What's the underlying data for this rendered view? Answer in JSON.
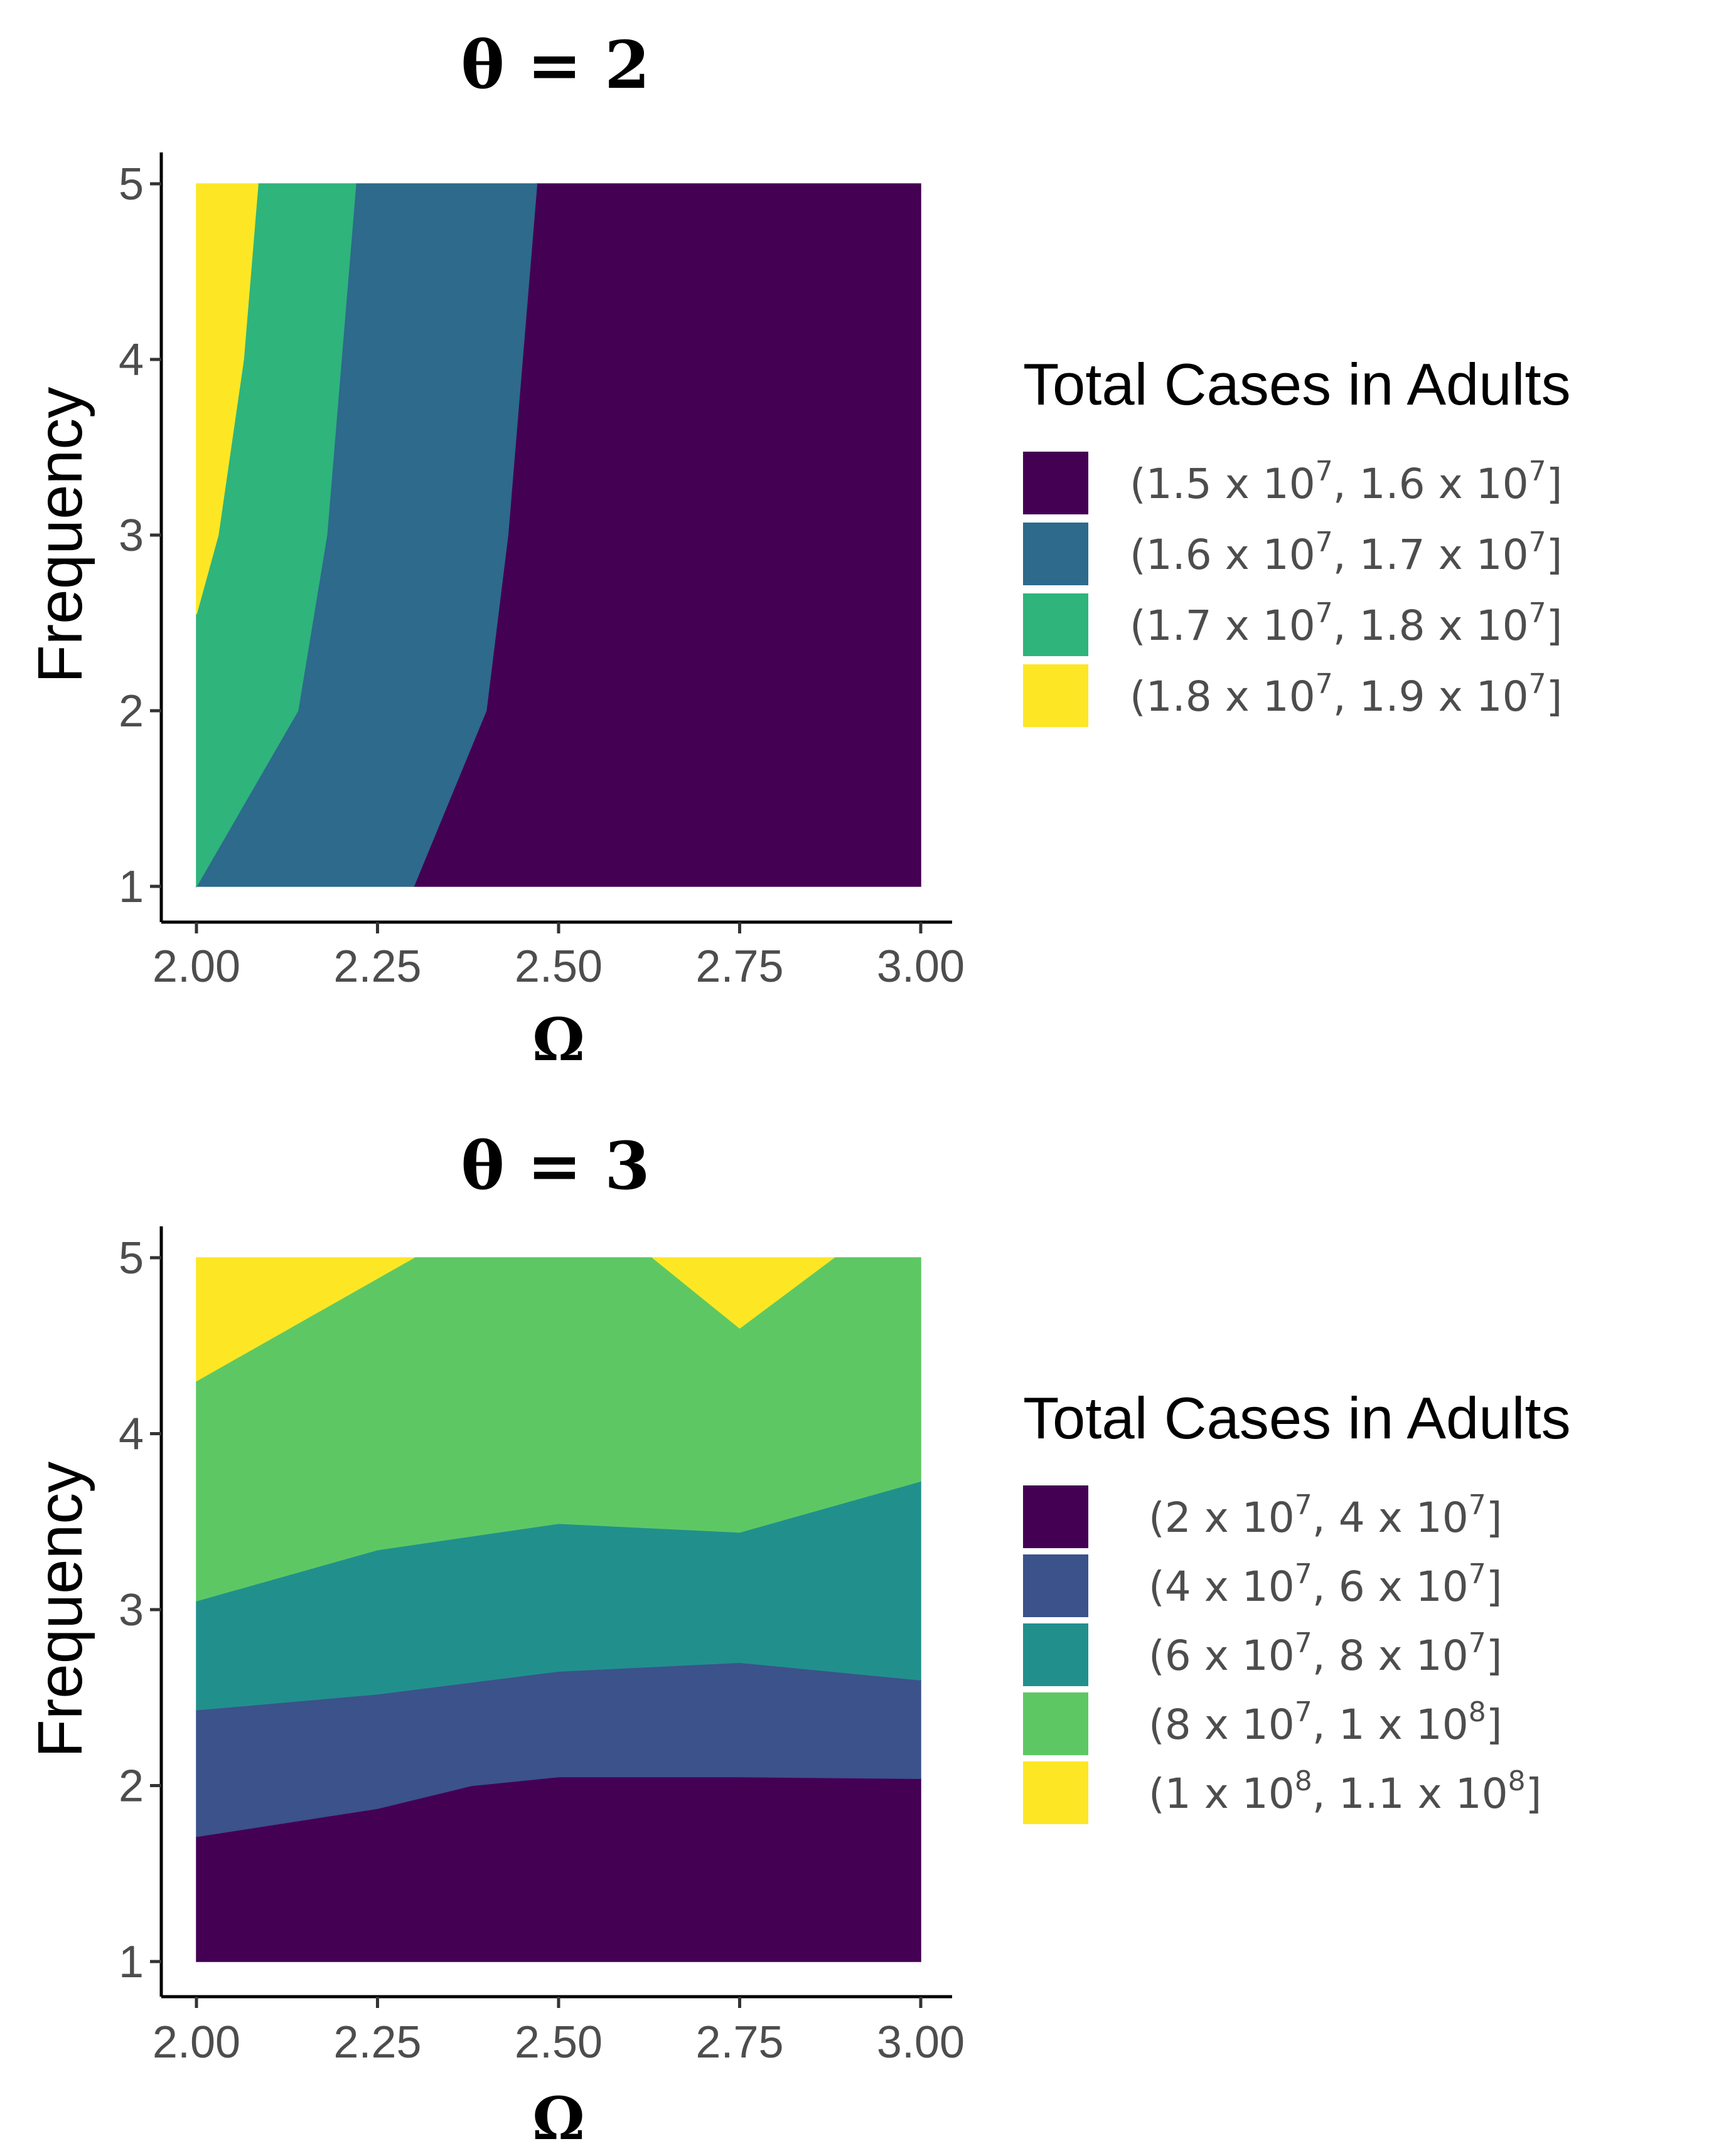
{
  "chart_data": [
    {
      "type": "contour",
      "title": "θ = 2",
      "xlabel": "Ω",
      "ylabel": "Frequency",
      "xlim": [
        2.0,
        3.0
      ],
      "ylim": [
        1,
        5
      ],
      "xticks": [
        "2.00",
        "2.25",
        "2.50",
        "2.75",
        "3.00"
      ],
      "xtick_values": [
        2.0,
        2.25,
        2.5,
        2.75,
        3.0
      ],
      "yticks": [
        "1",
        "2",
        "3",
        "4",
        "5"
      ],
      "ytick_values": [
        1,
        2,
        3,
        4,
        5
      ],
      "legend_title": "Total Cases in Adults",
      "legend": [
        {
          "label": "(1.5 x 10^7, 1.6 x 10^7]",
          "parts": [
            "(1.5 x 10",
            "7",
            ", 1.6 x 10",
            "7",
            "]"
          ],
          "color": "#440154"
        },
        {
          "label": "(1.6 x 10^7, 1.7 x 10^7]",
          "parts": [
            "(1.6 x 10",
            "7",
            ", 1.7 x 10",
            "7",
            "]"
          ],
          "color": "#2d6a8c"
        },
        {
          "label": "(1.7 x 10^7, 1.8 x 10^7]",
          "parts": [
            "(1.7 x 10",
            "7",
            ", 1.8 x 10",
            "7",
            "]"
          ],
          "color": "#2fb47c"
        },
        {
          "label": "(1.8 x 10^7, 1.9 x 10^7]",
          "parts": [
            "(1.8 x 10",
            "7",
            ", 1.9 x 10",
            "7",
            "]"
          ],
          "color": "#fde725"
        }
      ],
      "regions": [
        {
          "name": "band-1.5-1.6",
          "color": "#440154",
          "points": [
            [
              2.3,
              1
            ],
            [
              3.0,
              1
            ],
            [
              3.0,
              5
            ],
            [
              2.47,
              5
            ],
            [
              2.45,
              4
            ],
            [
              2.43,
              3
            ],
            [
              2.4,
              2
            ]
          ]
        },
        {
          "name": "band-1.6-1.7",
          "color": "#2d6a8c",
          "points": [
            [
              2.0,
              1
            ],
            [
              2.3,
              1
            ],
            [
              2.4,
              2
            ],
            [
              2.43,
              3
            ],
            [
              2.45,
              4
            ],
            [
              2.47,
              5
            ],
            [
              2.22,
              5
            ],
            [
              2.2,
              4
            ],
            [
              2.18,
              3
            ],
            [
              2.14,
              2
            ]
          ]
        },
        {
          "name": "band-1.7-1.8",
          "color": "#2fb47c",
          "points": [
            [
              2.0,
              1
            ],
            [
              2.14,
              2
            ],
            [
              2.18,
              3
            ],
            [
              2.2,
              4
            ],
            [
              2.22,
              5
            ],
            [
              2.085,
              5
            ],
            [
              2.065,
              4
            ],
            [
              2.03,
              3
            ],
            [
              2.0,
              2.55
            ]
          ]
        },
        {
          "name": "band-1.8-1.9",
          "color": "#fde725",
          "points": [
            [
              2.0,
              2.55
            ],
            [
              2.03,
              3
            ],
            [
              2.065,
              4
            ],
            [
              2.085,
              5
            ],
            [
              2.0,
              5
            ]
          ]
        }
      ]
    },
    {
      "type": "contour",
      "title": "θ = 3",
      "xlabel": "Ω",
      "ylabel": "Frequency",
      "xlim": [
        2.0,
        3.0
      ],
      "ylim": [
        1,
        5
      ],
      "xticks": [
        "2.00",
        "2.25",
        "2.50",
        "2.75",
        "3.00"
      ],
      "xtick_values": [
        2.0,
        2.25,
        2.5,
        2.75,
        3.0
      ],
      "yticks": [
        "1",
        "2",
        "3",
        "4",
        "5"
      ],
      "ytick_values": [
        1,
        2,
        3,
        4,
        5
      ],
      "legend_title": "Total Cases in Adults",
      "legend": [
        {
          "label": "(2 x 10^7, 4 x 10^7]",
          "parts": [
            "(2 x 10",
            "7",
            ", 4 x 10",
            "7",
            "]"
          ],
          "color": "#440154"
        },
        {
          "label": "(4 x 10^7, 6 x 10^7]",
          "parts": [
            "(4 x 10",
            "7",
            ", 6 x 10",
            "7",
            "]"
          ],
          "color": "#3b528b"
        },
        {
          "label": "(6 x 10^7, 8 x 10^7]",
          "parts": [
            "(6 x 10",
            "7",
            ", 8 x 10",
            "7",
            "]"
          ],
          "color": "#21908c"
        },
        {
          "label": "(8 x 10^7, 1 x 10^8]",
          "parts": [
            "(8 x 10",
            "7",
            ", 1 x 10",
            "8",
            "]"
          ],
          "color": "#5dc863"
        },
        {
          "label": "(1 x 10^8, 1.1 x 10^8]",
          "parts": [
            "(1 x 10",
            "8",
            ", 1.1 x 10",
            "8",
            "]"
          ],
          "color": "#fde725"
        }
      ],
      "regions": [
        {
          "name": "band-2-4",
          "color": "#440154",
          "points": [
            [
              2.0,
              1
            ],
            [
              3.0,
              1
            ],
            [
              3.0,
              2.04
            ],
            [
              2.75,
              2.05
            ],
            [
              2.5,
              2.05
            ],
            [
              2.38,
              2.0
            ],
            [
              2.25,
              1.87
            ],
            [
              2.0,
              1.71
            ]
          ]
        },
        {
          "name": "band-4-6",
          "color": "#3b528b",
          "points": [
            [
              2.0,
              1.71
            ],
            [
              2.25,
              1.87
            ],
            [
              2.38,
              2.0
            ],
            [
              2.5,
              2.05
            ],
            [
              2.75,
              2.05
            ],
            [
              3.0,
              2.04
            ],
            [
              3.0,
              2.6
            ],
            [
              2.75,
              2.7
            ],
            [
              2.5,
              2.65
            ],
            [
              2.25,
              2.52
            ],
            [
              2.0,
              2.43
            ]
          ]
        },
        {
          "name": "band-6-8",
          "color": "#21908c",
          "points": [
            [
              2.0,
              2.43
            ],
            [
              2.25,
              2.52
            ],
            [
              2.5,
              2.65
            ],
            [
              2.75,
              2.7
            ],
            [
              3.0,
              2.6
            ],
            [
              3.0,
              3.73
            ],
            [
              2.75,
              3.44
            ],
            [
              2.5,
              3.49
            ],
            [
              2.25,
              3.34
            ],
            [
              2.0,
              3.05
            ]
          ]
        },
        {
          "name": "band-8-10",
          "color": "#5dc863",
          "points": [
            [
              2.0,
              3.05
            ],
            [
              2.25,
              3.34
            ],
            [
              2.5,
              3.49
            ],
            [
              2.75,
              3.44
            ],
            [
              3.0,
              3.73
            ],
            [
              3.0,
              5
            ],
            [
              2.88,
              5
            ],
            [
              2.75,
              4.6
            ],
            [
              2.63,
              5
            ],
            [
              2.3,
              5
            ],
            [
              2.0,
              4.3
            ]
          ]
        },
        {
          "name": "band-10-11-left",
          "color": "#fde725",
          "points": [
            [
              2.0,
              4.3
            ],
            [
              2.3,
              5
            ],
            [
              2.0,
              5
            ]
          ]
        },
        {
          "name": "band-10-11-right",
          "color": "#fde725",
          "points": [
            [
              2.63,
              5
            ],
            [
              2.75,
              4.6
            ],
            [
              2.88,
              5
            ]
          ]
        }
      ]
    }
  ]
}
